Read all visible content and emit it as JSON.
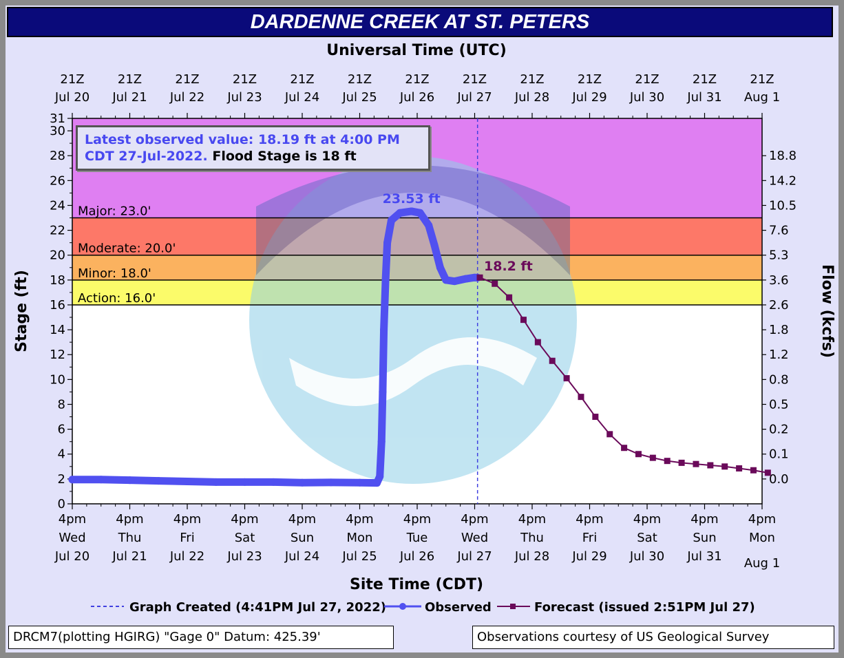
{
  "title": "DARDENNE CREEK AT ST. PETERS",
  "chart_data": {
    "type": "line",
    "top_axis_title": "Universal Time (UTC)",
    "bottom_axis_title": "Site Time (CDT)",
    "left_axis_title": "Stage (ft)",
    "right_axis_title": "Flow (kcfs)",
    "ylim": [
      0,
      31
    ],
    "y_ticks": [
      0,
      2,
      4,
      6,
      8,
      10,
      12,
      14,
      16,
      18,
      20,
      22,
      24,
      26,
      28,
      30,
      31
    ],
    "x_days": 12,
    "top_ticks": [
      {
        "l1": "21Z",
        "l2": "Jul 20"
      },
      {
        "l1": "21Z",
        "l2": "Jul 21"
      },
      {
        "l1": "21Z",
        "l2": "Jul 22"
      },
      {
        "l1": "21Z",
        "l2": "Jul 23"
      },
      {
        "l1": "21Z",
        "l2": "Jul 24"
      },
      {
        "l1": "21Z",
        "l2": "Jul 25"
      },
      {
        "l1": "21Z",
        "l2": "Jul 26"
      },
      {
        "l1": "21Z",
        "l2": "Jul 27"
      },
      {
        "l1": "21Z",
        "l2": "Jul 28"
      },
      {
        "l1": "21Z",
        "l2": "Jul 29"
      },
      {
        "l1": "21Z",
        "l2": "Jul 30"
      },
      {
        "l1": "21Z",
        "l2": "Jul 31"
      },
      {
        "l1": "21Z",
        "l2": "Aug 1"
      }
    ],
    "bottom_ticks": [
      {
        "l1": "4pm",
        "l2": "Wed",
        "l3": "Jul 20"
      },
      {
        "l1": "4pm",
        "l2": "Thu",
        "l3": "Jul 21"
      },
      {
        "l1": "4pm",
        "l2": "Fri",
        "l3": "Jul 22"
      },
      {
        "l1": "4pm",
        "l2": "Sat",
        "l3": "Jul 23"
      },
      {
        "l1": "4pm",
        "l2": "Sun",
        "l3": "Jul 24"
      },
      {
        "l1": "4pm",
        "l2": "Mon",
        "l3": "Jul 25"
      },
      {
        "l1": "4pm",
        "l2": "Tue",
        "l3": "Jul 26"
      },
      {
        "l1": "4pm",
        "l2": "Wed",
        "l3": "Jul 27"
      },
      {
        "l1": "4pm",
        "l2": "Thu",
        "l3": "Jul 28"
      },
      {
        "l1": "4pm",
        "l2": "Fri",
        "l3": "Jul 29"
      },
      {
        "l1": "4pm",
        "l2": "Sat",
        "l3": "Jul 30"
      },
      {
        "l1": "4pm",
        "l2": "Sun",
        "l3": "Jul 31"
      },
      {
        "l1": "4pm",
        "l2": "Mon",
        "l3": "Aug 1"
      }
    ],
    "flow_ticks": [
      {
        "stage": 25.0,
        "label": "18.8"
      },
      {
        "stage": 23.0,
        "label": "14.2"
      },
      {
        "stage": 21.0,
        "label": "10.5"
      },
      {
        "stage": 19.0,
        "label": "7.6"
      },
      {
        "stage": 17.0,
        "label": "5.3"
      },
      {
        "stage": 15.0,
        "label": "3.6"
      },
      {
        "stage": 13.0,
        "label": "2.6"
      },
      {
        "stage": 11.0,
        "label": "1.8"
      },
      {
        "stage": 9.0,
        "label": "1.2"
      },
      {
        "stage": 7.0,
        "label": "0.8"
      },
      {
        "stage": 5.0,
        "label": "0.5"
      },
      {
        "stage": 3.0,
        "label": "0.2"
      },
      {
        "stage": 1.0,
        "label": "0.1"
      },
      {
        "stage": -1.0,
        "label": "0.0"
      }
    ],
    "flood_categories": [
      {
        "name": "Major",
        "label": "Major: 23.0'",
        "from": 23,
        "to": 31,
        "color": "#df7ff2"
      },
      {
        "name": "Moderate",
        "label": "Moderate: 20.0'",
        "from": 20,
        "to": 23,
        "color": "#fd7868"
      },
      {
        "name": "Minor",
        "label": "Minor: 18.0'",
        "from": 18,
        "to": 20,
        "color": "#fbb25f"
      },
      {
        "name": "Action",
        "label": "Action: 16.0'",
        "from": 16,
        "to": 18,
        "color": "#fbfb6a"
      }
    ],
    "observed": [
      [
        0.0,
        1.95
      ],
      [
        0.5,
        1.95
      ],
      [
        1.0,
        1.9
      ],
      [
        1.5,
        1.85
      ],
      [
        2.0,
        1.8
      ],
      [
        2.5,
        1.75
      ],
      [
        3.0,
        1.75
      ],
      [
        3.5,
        1.75
      ],
      [
        4.0,
        1.7
      ],
      [
        4.5,
        1.72
      ],
      [
        5.0,
        1.7
      ],
      [
        5.3,
        1.68
      ],
      [
        5.35,
        2.2
      ],
      [
        5.38,
        5.0
      ],
      [
        5.4,
        9.0
      ],
      [
        5.42,
        14.0
      ],
      [
        5.45,
        18.0
      ],
      [
        5.48,
        21.0
      ],
      [
        5.55,
        22.8
      ],
      [
        5.7,
        23.4
      ],
      [
        5.9,
        23.53
      ],
      [
        6.05,
        23.4
      ],
      [
        6.2,
        22.4
      ],
      [
        6.3,
        20.8
      ],
      [
        6.4,
        19.0
      ],
      [
        6.5,
        18.0
      ],
      [
        6.65,
        17.9
      ],
      [
        6.85,
        18.1
      ],
      [
        7.0,
        18.2
      ],
      [
        7.05,
        18.19
      ]
    ],
    "peak_label": "23.53 ft",
    "peak_at": [
      5.9,
      23.53
    ],
    "forecast": [
      [
        7.09,
        18.2
      ],
      [
        7.35,
        17.7
      ],
      [
        7.6,
        16.6
      ],
      [
        7.85,
        14.8
      ],
      [
        8.1,
        13.0
      ],
      [
        8.35,
        11.5
      ],
      [
        8.6,
        10.1
      ],
      [
        8.85,
        8.6
      ],
      [
        9.1,
        7.0
      ],
      [
        9.35,
        5.6
      ],
      [
        9.6,
        4.5
      ],
      [
        9.85,
        4.0
      ],
      [
        10.1,
        3.7
      ],
      [
        10.35,
        3.45
      ],
      [
        10.6,
        3.3
      ],
      [
        10.85,
        3.2
      ],
      [
        11.1,
        3.1
      ],
      [
        11.35,
        3.0
      ],
      [
        11.6,
        2.85
      ],
      [
        11.85,
        2.7
      ],
      [
        12.1,
        2.5
      ]
    ],
    "forecast_label": "18.2 ft",
    "forecast_label_at": [
      7.09,
      18.2
    ],
    "graph_created_at": 7.05,
    "annotation": {
      "line1_blue": "Latest observed value: 18.19 ft at 4:00 PM",
      "line2_blue": "CDT 27-Jul-2022.",
      "line2_black": " Flood Stage is 18 ft"
    },
    "legend": {
      "created": "Graph Created (4:41PM Jul 27, 2022)",
      "observed": "Observed",
      "forecast": "Forecast (issued 2:51PM Jul 27)"
    },
    "colors": {
      "observed": "#5050f0",
      "forecast": "#6a0a5a",
      "created_line": "#4040e0"
    }
  },
  "footer": {
    "left": "DRCM7(plotting HGIRG) \"Gage 0\" Datum: 425.39'",
    "right": "Observations courtesy of US Geological Survey"
  }
}
